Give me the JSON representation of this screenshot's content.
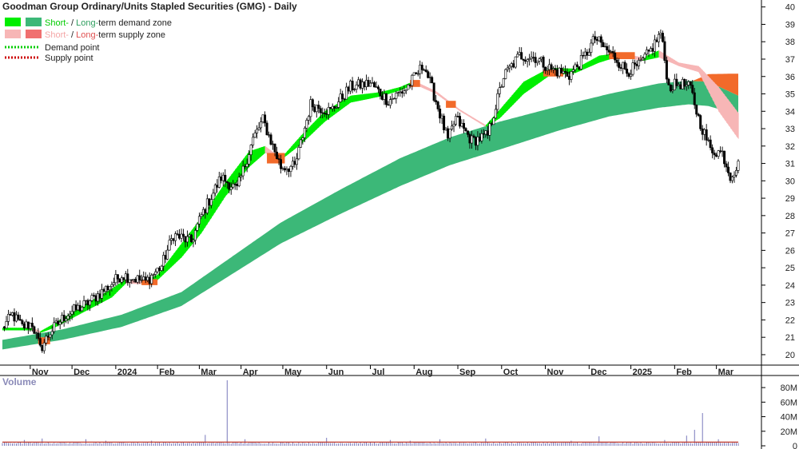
{
  "chart_data": {
    "type": "candlestick",
    "title": "Goodman Group Ordinary/Units Stapled Securities (GMG) - Daily",
    "legend": [
      {
        "part1": "Short-",
        "sep": " / ",
        "part2": "Long-",
        "rest": "term demand zone",
        "color1": "#00ee00",
        "color2": "#3cb878",
        "text1_color": "#00cc00",
        "text2_color": "#2e9e5e"
      },
      {
        "part1": "Short-",
        "sep": " / ",
        "part2": "Long-",
        "rest": "term supply zone",
        "color1": "#f7b6b6",
        "color2": "#f07070",
        "text1_color": "#f4a6a6",
        "text2_color": "#e05050"
      },
      {
        "label": "Demand point",
        "color": "#00cc00",
        "dotted": true
      },
      {
        "label": "Supply point",
        "color": "#cc0000",
        "dotted": true
      }
    ],
    "y_ticks": [
      20,
      21,
      22,
      23,
      24,
      25,
      26,
      27,
      28,
      29,
      30,
      31,
      32,
      33,
      34,
      35,
      36,
      37,
      38,
      39,
      40
    ],
    "ylim": [
      19.4,
      40.4
    ],
    "x_ticks": [
      "Nov",
      "Dec",
      "2024",
      "Feb",
      "Mar",
      "Apr",
      "May",
      "Jun",
      "Jul",
      "Aug",
      "Sep",
      "Oct",
      "Nov",
      "Dec",
      "2025",
      "Feb",
      "Mar"
    ],
    "price_key_points": [
      {
        "t": 0,
        "v": 21.5
      },
      {
        "t": 5,
        "v": 22.3
      },
      {
        "t": 10,
        "v": 21.6
      },
      {
        "t": 15,
        "v": 21.8
      },
      {
        "t": 19,
        "v": 20.3
      },
      {
        "t": 24,
        "v": 21.3
      },
      {
        "t": 32,
        "v": 22.3
      },
      {
        "t": 42,
        "v": 22.9
      },
      {
        "t": 52,
        "v": 23.8
      },
      {
        "t": 60,
        "v": 24.6
      },
      {
        "t": 72,
        "v": 24.2
      },
      {
        "t": 80,
        "v": 25.1
      },
      {
        "t": 86,
        "v": 26.9
      },
      {
        "t": 95,
        "v": 26.5
      },
      {
        "t": 100,
        "v": 28.0
      },
      {
        "t": 110,
        "v": 30.2
      },
      {
        "t": 118,
        "v": 29.5
      },
      {
        "t": 126,
        "v": 32.4
      },
      {
        "t": 131,
        "v": 33.5
      },
      {
        "t": 140,
        "v": 30.8
      },
      {
        "t": 147,
        "v": 30.8
      },
      {
        "t": 155,
        "v": 34.4
      },
      {
        "t": 165,
        "v": 34.0
      },
      {
        "t": 175,
        "v": 35.4
      },
      {
        "t": 185,
        "v": 35.6
      },
      {
        "t": 194,
        "v": 34.6
      },
      {
        "t": 203,
        "v": 35.3
      },
      {
        "t": 212,
        "v": 36.7
      },
      {
        "t": 218,
        "v": 34.6
      },
      {
        "t": 224,
        "v": 32.3
      },
      {
        "t": 228,
        "v": 33.6
      },
      {
        "t": 236,
        "v": 32.3
      },
      {
        "t": 244,
        "v": 32.6
      },
      {
        "t": 252,
        "v": 36.0
      },
      {
        "t": 260,
        "v": 37.2
      },
      {
        "t": 268,
        "v": 37.1
      },
      {
        "t": 276,
        "v": 36.4
      },
      {
        "t": 285,
        "v": 36.1
      },
      {
        "t": 292,
        "v": 37.0
      },
      {
        "t": 298,
        "v": 38.2
      },
      {
        "t": 303,
        "v": 37.6
      },
      {
        "t": 308,
        "v": 37.1
      },
      {
        "t": 314,
        "v": 36.3
      },
      {
        "t": 320,
        "v": 36.6
      },
      {
        "t": 326,
        "v": 37.5
      },
      {
        "t": 331,
        "v": 38.5
      },
      {
        "t": 335,
        "v": 35.4
      },
      {
        "t": 341,
        "v": 35.6
      },
      {
        "t": 346,
        "v": 35.3
      },
      {
        "t": 350,
        "v": 33.6
      },
      {
        "t": 356,
        "v": 31.8
      },
      {
        "t": 362,
        "v": 31.6
      },
      {
        "t": 366,
        "v": 30.3
      },
      {
        "t": 370,
        "v": 30.9
      }
    ],
    "num_days": 371,
    "short_zone_points": [
      {
        "t": 0,
        "lo": 21.4,
        "hi": 21.55
      },
      {
        "t": 15,
        "lo": 21.4,
        "hi": 21.55
      },
      {
        "t": 19,
        "lo": 21.25,
        "hi": 21.35
      },
      {
        "t": 26,
        "lo": 21.55,
        "hi": 21.8
      },
      {
        "t": 40,
        "lo": 22.4,
        "hi": 22.8
      },
      {
        "t": 55,
        "lo": 23.3,
        "hi": 23.8
      },
      {
        "t": 62,
        "lo": 24.1,
        "hi": 24.35
      },
      {
        "t": 70,
        "lo": 24.05,
        "hi": 24.2
      },
      {
        "t": 78,
        "lo": 24.3,
        "hi": 24.6
      },
      {
        "t": 90,
        "lo": 25.6,
        "hi": 26.4
      },
      {
        "t": 100,
        "lo": 27.0,
        "hi": 27.9
      },
      {
        "t": 112,
        "lo": 29.1,
        "hi": 29.9
      },
      {
        "t": 124,
        "lo": 30.8,
        "hi": 31.7
      },
      {
        "t": 132,
        "lo": 31.6,
        "hi": 32.0
      },
      {
        "t": 140,
        "lo": 31.2,
        "hi": 31.3
      },
      {
        "t": 150,
        "lo": 32.1,
        "hi": 32.6
      },
      {
        "t": 162,
        "lo": 33.4,
        "hi": 34.0
      },
      {
        "t": 175,
        "lo": 34.5,
        "hi": 34.9
      },
      {
        "t": 190,
        "lo": 34.85,
        "hi": 35.1
      },
      {
        "t": 200,
        "lo": 35.2,
        "hi": 35.4
      },
      {
        "t": 207,
        "lo": 35.55,
        "hi": 35.75
      },
      {
        "t": 218,
        "lo": 35.0,
        "hi": 35.15
      },
      {
        "t": 230,
        "lo": 34.0,
        "hi": 34.1
      },
      {
        "t": 243,
        "lo": 33.1,
        "hi": 33.2
      },
      {
        "t": 250,
        "lo": 33.6,
        "hi": 34.1
      },
      {
        "t": 262,
        "lo": 35.0,
        "hi": 35.7
      },
      {
        "t": 275,
        "lo": 36.05,
        "hi": 36.5
      },
      {
        "t": 288,
        "lo": 36.2,
        "hi": 36.45
      },
      {
        "t": 300,
        "lo": 36.8,
        "hi": 37.2
      },
      {
        "t": 310,
        "lo": 37.15,
        "hi": 37.35
      },
      {
        "t": 322,
        "lo": 36.9,
        "hi": 37.1
      },
      {
        "t": 330,
        "lo": 37.1,
        "hi": 37.5
      },
      {
        "t": 340,
        "lo": 36.6,
        "hi": 36.8
      },
      {
        "t": 350,
        "lo": 36.25,
        "hi": 36.6
      },
      {
        "t": 360,
        "lo": 34.0,
        "hi": 35.4
      },
      {
        "t": 370,
        "lo": 32.4,
        "hi": 33.9
      }
    ],
    "long_zone_points": [
      {
        "t": 0,
        "lo": 20.3,
        "hi": 20.85
      },
      {
        "t": 30,
        "lo": 20.85,
        "hi": 21.45
      },
      {
        "t": 60,
        "lo": 21.6,
        "hi": 22.3
      },
      {
        "t": 90,
        "lo": 22.8,
        "hi": 23.6
      },
      {
        "t": 115,
        "lo": 24.6,
        "hi": 25.6
      },
      {
        "t": 140,
        "lo": 26.4,
        "hi": 27.6
      },
      {
        "t": 170,
        "lo": 28.1,
        "hi": 29.5
      },
      {
        "t": 200,
        "lo": 29.7,
        "hi": 31.3
      },
      {
        "t": 225,
        "lo": 30.9,
        "hi": 32.5
      },
      {
        "t": 250,
        "lo": 31.8,
        "hi": 33.4
      },
      {
        "t": 280,
        "lo": 32.9,
        "hi": 34.3
      },
      {
        "t": 305,
        "lo": 33.7,
        "hi": 35.0
      },
      {
        "t": 330,
        "lo": 34.2,
        "hi": 35.6
      },
      {
        "t": 345,
        "lo": 34.4,
        "hi": 35.75
      },
      {
        "t": 355,
        "lo": 34.3,
        "hi": 35.7
      },
      {
        "t": 370,
        "lo": 33.8,
        "hi": 34.9
      }
    ],
    "volume": {
      "title": "Volume",
      "ticks": [
        "80M",
        "60M",
        "40M",
        "20M",
        "0"
      ],
      "tick_values": [
        80,
        60,
        40,
        20,
        0
      ],
      "ylim": [
        0,
        90
      ],
      "base_level_m": 4,
      "spikes_m": [
        {
          "t": 11,
          "v": 8
        },
        {
          "t": 20,
          "v": 10
        },
        {
          "t": 42,
          "v": 9
        },
        {
          "t": 52,
          "v": 7
        },
        {
          "t": 75,
          "v": 7
        },
        {
          "t": 102,
          "v": 15
        },
        {
          "t": 113,
          "v": 90
        },
        {
          "t": 122,
          "v": 9
        },
        {
          "t": 163,
          "v": 11
        },
        {
          "t": 195,
          "v": 8
        },
        {
          "t": 205,
          "v": 7
        },
        {
          "t": 220,
          "v": 9
        },
        {
          "t": 243,
          "v": 10
        },
        {
          "t": 286,
          "v": 7
        },
        {
          "t": 300,
          "v": 13
        },
        {
          "t": 333,
          "v": 8
        },
        {
          "t": 344,
          "v": 14
        },
        {
          "t": 348,
          "v": 22
        },
        {
          "t": 352,
          "v": 45
        },
        {
          "t": 360,
          "v": 9
        }
      ]
    }
  }
}
